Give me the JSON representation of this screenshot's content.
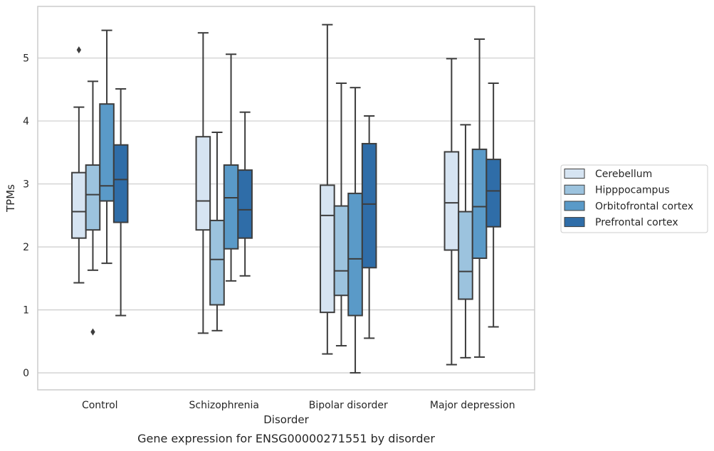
{
  "caption": "Gene expression for ENSG00000271551 by disorder",
  "chart_data": {
    "type": "box",
    "xlabel": "Disorder",
    "ylabel": "TPMs",
    "ylim": [
      -0.27,
      5.82
    ],
    "yticks": [
      0,
      1,
      2,
      3,
      4,
      5
    ],
    "grid": "horizontal",
    "legend_position": "right",
    "categories": [
      "Control",
      "Schizophrenia",
      "Bipolar disorder",
      "Major depression"
    ],
    "series": [
      {
        "name": "Cerebellum",
        "color": "#d6e4f2",
        "boxes": [
          {
            "min": 1.43,
            "q1": 2.14,
            "median": 2.56,
            "q3": 3.18,
            "max": 4.22,
            "outliers": [
              5.13
            ]
          },
          {
            "min": 0.63,
            "q1": 2.27,
            "median": 2.73,
            "q3": 3.75,
            "max": 5.4,
            "outliers": []
          },
          {
            "min": 0.3,
            "q1": 0.96,
            "median": 2.5,
            "q3": 2.98,
            "max": 5.53,
            "outliers": []
          },
          {
            "min": 0.13,
            "q1": 1.95,
            "median": 2.7,
            "q3": 3.51,
            "max": 4.99,
            "outliers": []
          }
        ]
      },
      {
        "name": "Hipppocampus",
        "color": "#9cc3de",
        "boxes": [
          {
            "min": 1.63,
            "q1": 2.27,
            "median": 2.83,
            "q3": 3.3,
            "max": 4.63,
            "outliers": [
              0.65
            ]
          },
          {
            "min": 0.67,
            "q1": 1.08,
            "median": 1.8,
            "q3": 2.42,
            "max": 3.82,
            "outliers": []
          },
          {
            "min": 0.43,
            "q1": 1.23,
            "median": 1.62,
            "q3": 2.65,
            "max": 4.6,
            "outliers": []
          },
          {
            "min": 0.24,
            "q1": 1.17,
            "median": 1.61,
            "q3": 2.56,
            "max": 3.94,
            "outliers": []
          }
        ]
      },
      {
        "name": "Orbitofrontal cortex",
        "color": "#5a9ac8",
        "boxes": [
          {
            "min": 1.74,
            "q1": 2.73,
            "median": 2.97,
            "q3": 4.27,
            "max": 5.44,
            "outliers": []
          },
          {
            "min": 1.46,
            "q1": 1.97,
            "median": 2.78,
            "q3": 3.3,
            "max": 5.06,
            "outliers": []
          },
          {
            "min": 0.0,
            "q1": 0.91,
            "median": 1.81,
            "q3": 2.85,
            "max": 4.53,
            "outliers": []
          },
          {
            "min": 0.25,
            "q1": 1.82,
            "median": 2.64,
            "q3": 3.55,
            "max": 5.3,
            "outliers": []
          }
        ]
      },
      {
        "name": "Prefrontal cortex",
        "color": "#2f6da8",
        "boxes": [
          {
            "min": 0.91,
            "q1": 2.39,
            "median": 3.07,
            "q3": 3.62,
            "max": 4.51,
            "outliers": []
          },
          {
            "min": 1.54,
            "q1": 2.14,
            "median": 2.59,
            "q3": 3.22,
            "max": 4.14,
            "outliers": []
          },
          {
            "min": 0.55,
            "q1": 1.67,
            "median": 2.68,
            "q3": 3.64,
            "max": 4.08,
            "outliers": []
          },
          {
            "min": 0.73,
            "q1": 2.32,
            "median": 2.89,
            "q3": 3.39,
            "max": 4.6,
            "outliers": []
          }
        ]
      }
    ]
  }
}
